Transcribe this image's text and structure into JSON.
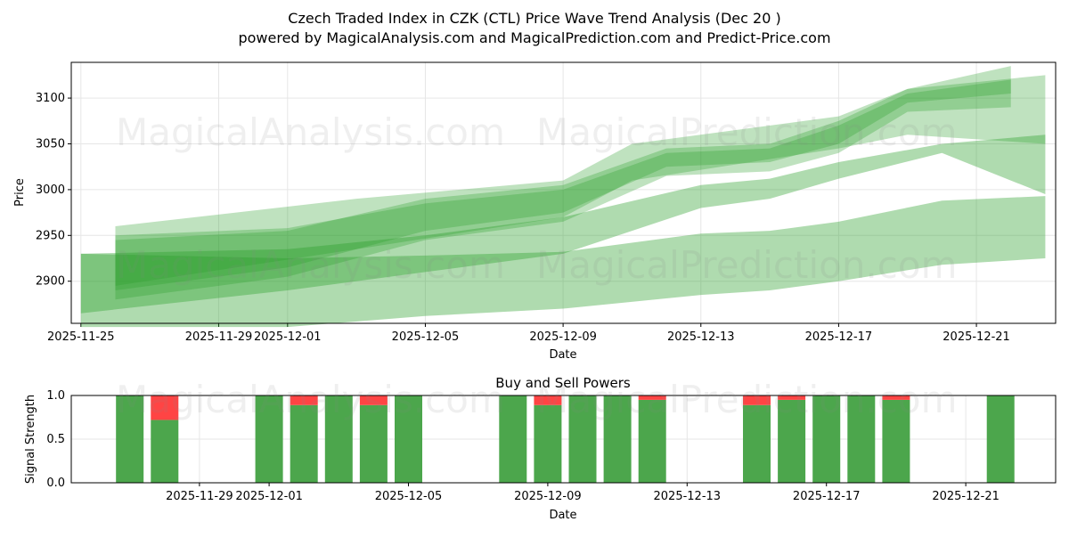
{
  "chart_data": [
    {
      "type": "area",
      "title": "Czech Traded Index in CZK (CTL) Price Wave Trend Analysis (Dec 20 )",
      "subtitle": "powered by MagicalAnalysis.com and MagicalPrediction.com and Predict-Price.com",
      "xlabel": "Date",
      "ylabel": "Price",
      "ylim": [
        2854,
        3139
      ],
      "xlim": [
        "2025-11-24.72",
        "2025-12-23.3"
      ],
      "x_ticks": [
        "2025-11-25",
        "2025-11-29",
        "2025-12-01",
        "2025-12-05",
        "2025-12-09",
        "2025-12-13",
        "2025-12-17",
        "2025-12-21"
      ],
      "y_ticks": [
        2900,
        2950,
        3000,
        3050,
        3100
      ],
      "grid": true,
      "color": "#2ca02c",
      "bands": [
        {
          "name": "band-1",
          "points": [
            [
              "2025-11-25",
              2850,
              2930
            ],
            [
              "2025-12-01",
              2850,
              2925
            ],
            [
              "2025-12-05",
              2862,
              2928
            ],
            [
              "2025-12-09",
              2870,
              2932
            ],
            [
              "2025-12-13",
              2885,
              2952
            ],
            [
              "2025-12-15",
              2890,
              2955
            ],
            [
              "2025-12-17",
              2900,
              2965
            ],
            [
              "2025-12-20",
              2918,
              2988
            ],
            [
              "2025-12-23",
              2925,
              2993
            ]
          ]
        },
        {
          "name": "band-2",
          "points": [
            [
              "2025-11-25",
              2865,
              2930
            ],
            [
              "2025-12-01",
              2890,
              2935
            ],
            [
              "2025-12-05",
              2910,
              2950
            ],
            [
              "2025-12-09",
              2930,
              2970
            ],
            [
              "2025-12-13",
              2980,
              3005
            ],
            [
              "2025-12-15",
              2990,
              3012
            ],
            [
              "2025-12-17",
              3012,
              3030
            ],
            [
              "2025-12-20",
              3040,
              3050
            ],
            [
              "2025-12-23",
              2995,
              3060
            ]
          ]
        },
        {
          "name": "band-3",
          "points": [
            [
              "2025-11-26",
              2880,
              2945
            ],
            [
              "2025-12-01",
              2905,
              2955
            ],
            [
              "2025-12-05",
              2945,
              2990
            ],
            [
              "2025-12-09",
              2965,
              3005
            ],
            [
              "2025-12-12",
              3015,
              3045
            ],
            [
              "2025-12-15",
              3020,
              3050
            ],
            [
              "2025-12-17",
              3040,
              3075
            ],
            [
              "2025-12-19",
              3085,
              3110
            ],
            [
              "2025-12-22",
              3090,
              3135
            ]
          ]
        },
        {
          "name": "band-4",
          "points": [
            [
              "2025-11-26",
              2890,
              2950
            ],
            [
              "2025-12-01",
              2915,
              2958
            ],
            [
              "2025-12-05",
              2955,
              2985
            ],
            [
              "2025-12-09",
              2975,
              3000
            ],
            [
              "2025-12-12",
              3025,
              3040
            ],
            [
              "2025-12-15",
              3030,
              3045
            ],
            [
              "2025-12-17",
              3050,
              3070
            ],
            [
              "2025-12-19",
              3095,
              3105
            ],
            [
              "2025-12-22",
              3105,
              3120
            ]
          ]
        },
        {
          "name": "band-5",
          "points": [
            [
              "2025-11-26",
              2895,
              2960
            ],
            [
              "2025-12-03",
              2935,
              2990
            ],
            [
              "2025-12-09",
              2970,
              3010
            ],
            [
              "2025-12-11",
              3010,
              3050
            ],
            [
              "2025-12-17",
              3045,
              3080
            ],
            [
              "2025-12-19",
              3060,
              3110
            ],
            [
              "2025-12-23",
              3050,
              3125
            ]
          ]
        }
      ]
    },
    {
      "type": "bar",
      "title": "Buy and Sell Powers",
      "xlabel": "Date",
      "ylabel": "Signal Strength",
      "ylim": [
        0,
        1
      ],
      "xlim": [
        "2025-11-25.32",
        "2025-12-23.58"
      ],
      "x_ticks": [
        "2025-11-29",
        "2025-12-01",
        "2025-12-05",
        "2025-12-09",
        "2025-12-13",
        "2025-12-17",
        "2025-12-21"
      ],
      "y_ticks": [
        "0.0",
        "0.5",
        "1.0"
      ],
      "categories": [
        "2025-11-27",
        "2025-11-28",
        "2025-12-01",
        "2025-12-02",
        "2025-12-03",
        "2025-12-04",
        "2025-12-05",
        "2025-12-08",
        "2025-12-09",
        "2025-12-10",
        "2025-12-11",
        "2025-12-12",
        "2025-12-15",
        "2025-12-16",
        "2025-12-17",
        "2025-12-18",
        "2025-12-19",
        "2025-12-22"
      ],
      "series": [
        {
          "name": "Buy",
          "color": "#4ca64c",
          "values": [
            1,
            0.72,
            1,
            0.89,
            1,
            0.89,
            1,
            1,
            0.89,
            1,
            1,
            0.95,
            0.89,
            0.95,
            1,
            1,
            0.95,
            1
          ]
        },
        {
          "name": "Sell",
          "color": "#ff4444",
          "values": [
            0,
            0.28,
            0,
            0.11,
            0,
            0.11,
            0,
            0,
            0.11,
            0,
            0,
            0.05,
            0.11,
            0.05,
            0,
            0,
            0.05,
            0
          ]
        }
      ]
    }
  ],
  "watermarks": [
    "MagicalAnalysis.com",
    "MagicalPrediction.com"
  ]
}
